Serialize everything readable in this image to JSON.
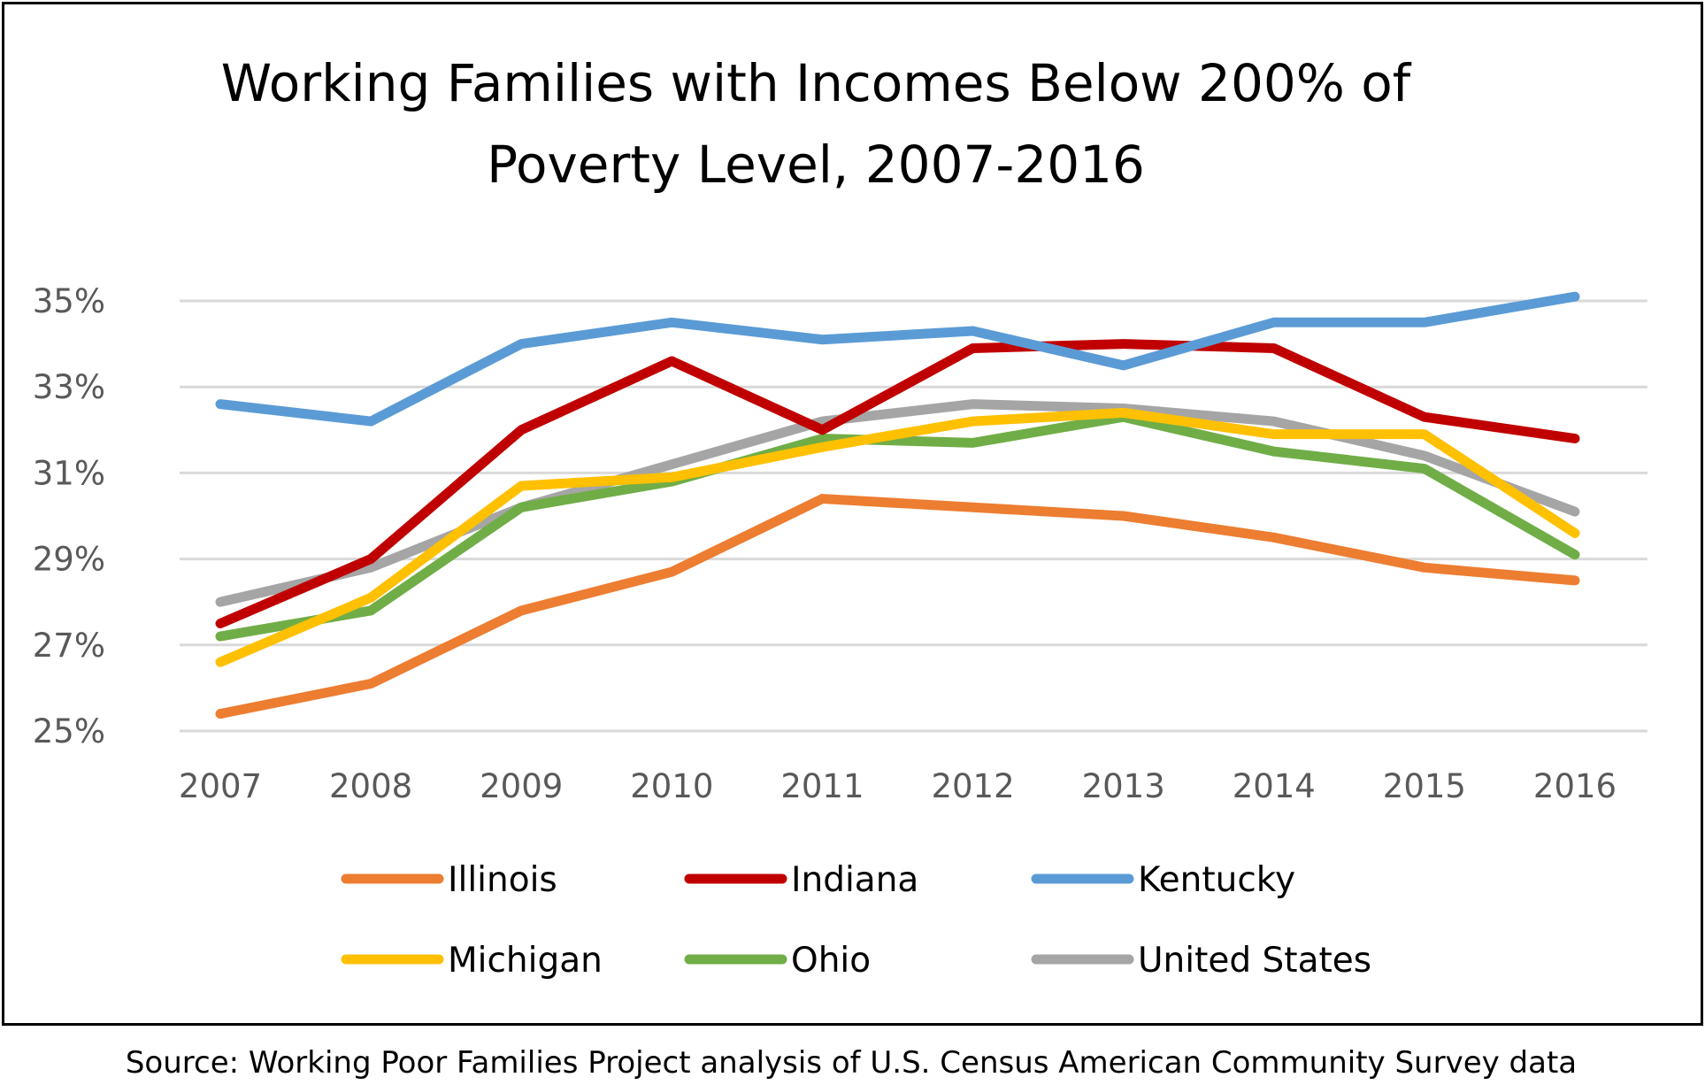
{
  "chart_data": {
    "type": "line",
    "title": [
      "Working Families with Incomes Below 200% of",
      "Poverty Level, 2007-2016"
    ],
    "xlabel": "",
    "ylabel": "",
    "categories": [
      "2007",
      "2008",
      "2009",
      "2010",
      "2011",
      "2012",
      "2013",
      "2014",
      "2015",
      "2016"
    ],
    "ylim": [
      25,
      35
    ],
    "yticks": [
      25,
      27,
      29,
      31,
      33,
      35
    ],
    "ytick_labels": [
      "25%",
      "27%",
      "29%",
      "31%",
      "33%",
      "35%"
    ],
    "grid": true,
    "legend_position": "bottom",
    "series": [
      {
        "name": "Illinois",
        "color": "#ED7D31",
        "values": [
          25.4,
          26.1,
          27.8,
          28.7,
          30.4,
          30.2,
          30.0,
          29.5,
          28.8,
          28.5
        ]
      },
      {
        "name": "Indiana",
        "color": "#C00000",
        "values": [
          27.5,
          29.0,
          32.0,
          33.6,
          32.0,
          33.9,
          34.0,
          33.9,
          32.3,
          31.8
        ]
      },
      {
        "name": "Kentucky",
        "color": "#5B9BD5",
        "values": [
          32.6,
          32.2,
          34.0,
          34.5,
          34.1,
          34.3,
          33.5,
          34.5,
          34.5,
          35.1
        ]
      },
      {
        "name": "Michigan",
        "color": "#FFC000",
        "values": [
          26.6,
          28.1,
          30.7,
          30.9,
          31.6,
          32.2,
          32.4,
          31.9,
          31.9,
          29.6
        ]
      },
      {
        "name": "Ohio",
        "color": "#70AD47",
        "values": [
          27.2,
          27.8,
          30.2,
          30.8,
          31.8,
          31.7,
          32.3,
          31.5,
          31.1,
          29.1
        ]
      },
      {
        "name": "United States",
        "color": "#A5A5A5",
        "values": [
          28.0,
          28.8,
          30.2,
          31.2,
          32.2,
          32.6,
          32.5,
          32.2,
          31.4,
          30.1
        ]
      }
    ]
  },
  "source": "Source: Working Poor Families Project analysis of U.S. Census American Community Survey data"
}
